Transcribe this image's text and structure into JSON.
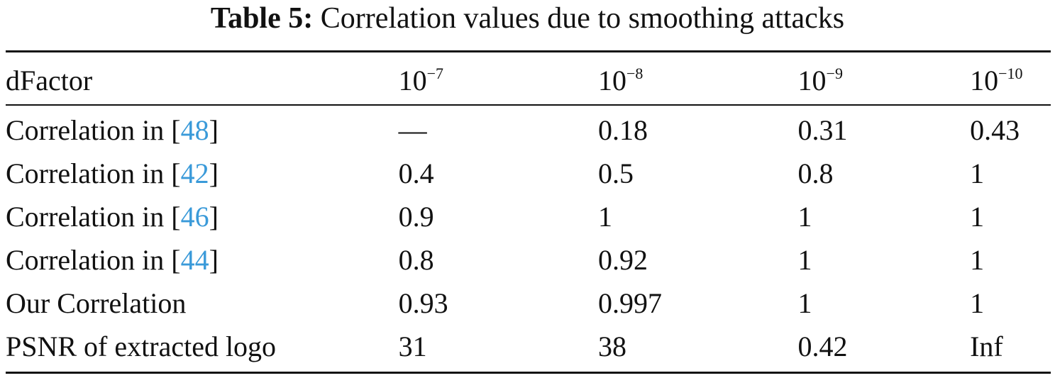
{
  "caption": {
    "label": "Table 5:",
    "text": "Correlation values due to smoothing attacks"
  },
  "table": {
    "header": {
      "row_label": "dFactor",
      "columns": [
        {
          "base": "10",
          "exponent": "−7"
        },
        {
          "base": "10",
          "exponent": "−8"
        },
        {
          "base": "10",
          "exponent": "−9"
        },
        {
          "base": "10",
          "exponent": "−10"
        }
      ]
    },
    "rows": [
      {
        "label": "Correlation in [",
        "ref": "48",
        "label_end": "]",
        "values": [
          "—",
          "0.18",
          "0.31",
          "0.43"
        ]
      },
      {
        "label": "Correlation in [",
        "ref": "42",
        "label_end": "]",
        "values": [
          "0.4",
          "0.5",
          "0.8",
          "1"
        ]
      },
      {
        "label": "Correlation in [",
        "ref": "46",
        "label_end": "]",
        "values": [
          "0.9",
          "1",
          "1",
          "1"
        ]
      },
      {
        "label": "Correlation in [",
        "ref": "44",
        "label_end": "]",
        "values": [
          "0.8",
          "0.92",
          "1",
          "1"
        ]
      },
      {
        "label": "Our Correlation",
        "ref": "",
        "label_end": "",
        "values": [
          "0.93",
          "0.997",
          "1",
          "1"
        ]
      },
      {
        "label": "PSNR of extracted logo",
        "ref": "",
        "label_end": "",
        "values": [
          "31",
          "38",
          "0.42",
          "Inf"
        ]
      }
    ]
  }
}
